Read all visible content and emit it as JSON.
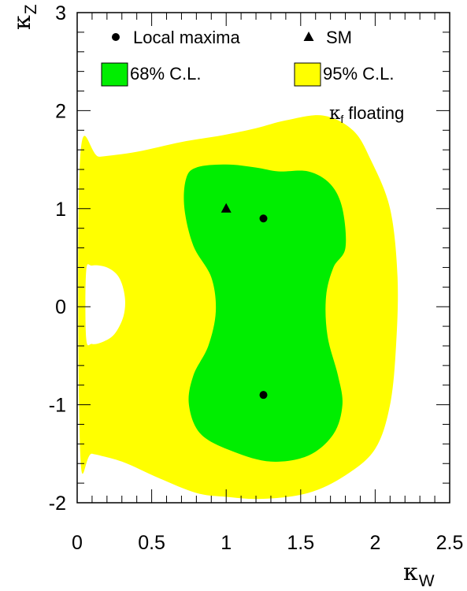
{
  "chart_data": {
    "type": "contour",
    "xlabel": {
      "symbol": "κ",
      "sub": "W"
    },
    "ylabel": {
      "symbol": "κ",
      "sub": "Z"
    },
    "xlim": [
      0,
      2.5
    ],
    "ylim": [
      -2,
      3
    ],
    "xticks": [
      {
        "value": 0,
        "label": "0"
      },
      {
        "value": 0.5,
        "label": "0.5"
      },
      {
        "value": 1,
        "label": "1"
      },
      {
        "value": 1.5,
        "label": "1.5"
      },
      {
        "value": 2,
        "label": "2"
      },
      {
        "value": 2.5,
        "label": "2.5"
      }
    ],
    "yticks": [
      {
        "value": -2,
        "label": "-2"
      },
      {
        "value": -1,
        "label": "-1"
      },
      {
        "value": 0,
        "label": "0"
      },
      {
        "value": 1,
        "label": "1"
      },
      {
        "value": 2,
        "label": "2"
      },
      {
        "value": 3,
        "label": "3"
      }
    ],
    "grid": false,
    "legend_position": "top",
    "annotation": {
      "symbol": "κ",
      "sub": "f",
      "text": "floating"
    },
    "regions": [
      {
        "name": "95% C.L.",
        "color": "#ffff00",
        "outer": [
          [
            0.02,
            -1.48
          ],
          [
            0.1,
            -1.5
          ],
          [
            0.3,
            -1.58
          ],
          [
            0.55,
            -1.75
          ],
          [
            0.8,
            -1.9
          ],
          [
            1.0,
            -1.94
          ],
          [
            1.25,
            -1.96
          ],
          [
            1.55,
            -1.9
          ],
          [
            1.8,
            -1.72
          ],
          [
            2.0,
            -1.45
          ],
          [
            2.1,
            -1.0
          ],
          [
            2.14,
            -0.4
          ],
          [
            2.15,
            0.3
          ],
          [
            2.1,
            1.0
          ],
          [
            1.97,
            1.5
          ],
          [
            1.85,
            1.8
          ],
          [
            1.65,
            1.95
          ],
          [
            1.4,
            1.9
          ],
          [
            1.2,
            1.82
          ],
          [
            0.98,
            1.75
          ],
          [
            0.7,
            1.68
          ],
          [
            0.4,
            1.58
          ],
          [
            0.15,
            1.53
          ],
          [
            0.02,
            1.52
          ]
        ],
        "hole": [
          [
            0.1,
            0.42
          ],
          [
            0.2,
            0.4
          ],
          [
            0.28,
            0.3
          ],
          [
            0.32,
            0.1
          ],
          [
            0.31,
            -0.1
          ],
          [
            0.25,
            -0.28
          ],
          [
            0.17,
            -0.36
          ],
          [
            0.1,
            -0.38
          ],
          [
            0.06,
            -0.32
          ],
          [
            0.06,
            0.36
          ]
        ]
      },
      {
        "name": "68% C.L.",
        "color": "#00ee00",
        "outer": [
          [
            0.83,
            -1.3
          ],
          [
            0.75,
            -1.0
          ],
          [
            0.78,
            -0.7
          ],
          [
            0.88,
            -0.4
          ],
          [
            0.93,
            -0.05
          ],
          [
            0.9,
            0.3
          ],
          [
            0.78,
            0.62
          ],
          [
            0.72,
            1.0
          ],
          [
            0.73,
            1.3
          ],
          [
            0.8,
            1.42
          ],
          [
            1.0,
            1.45
          ],
          [
            1.2,
            1.42
          ],
          [
            1.35,
            1.38
          ],
          [
            1.55,
            1.38
          ],
          [
            1.7,
            1.25
          ],
          [
            1.78,
            1.0
          ],
          [
            1.8,
            0.6
          ],
          [
            1.72,
            0.4
          ],
          [
            1.67,
            0.1
          ],
          [
            1.68,
            -0.3
          ],
          [
            1.75,
            -0.7
          ],
          [
            1.78,
            -1.0
          ],
          [
            1.72,
            -1.3
          ],
          [
            1.55,
            -1.52
          ],
          [
            1.3,
            -1.58
          ],
          [
            1.05,
            -1.48
          ]
        ]
      }
    ],
    "points": [
      {
        "series": "Local maxima",
        "x": 1.25,
        "y": 0.9
      },
      {
        "series": "Local maxima",
        "x": 1.25,
        "y": -0.9
      },
      {
        "series": "SM",
        "x": 1.0,
        "y": 1.0
      }
    ],
    "legend": [
      {
        "label": "Local maxima",
        "marker": "circle"
      },
      {
        "label": "SM",
        "marker": "triangle"
      },
      {
        "label": "68% C.L.",
        "marker": "box",
        "color": "#00ee00"
      },
      {
        "label": "95% C.L.",
        "marker": "box",
        "color": "#ffff00"
      }
    ]
  }
}
